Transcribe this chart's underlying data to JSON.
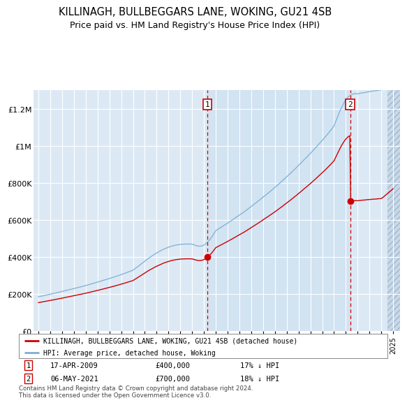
{
  "title": "KILLINAGH, BULLBEGGARS LANE, WOKING, GU21 4SB",
  "subtitle": "Price paid vs. HM Land Registry's House Price Index (HPI)",
  "ylim": [
    0,
    1300000
  ],
  "yticks": [
    0,
    200000,
    400000,
    600000,
    800000,
    1000000,
    1200000
  ],
  "ytick_labels": [
    "£0",
    "£200K",
    "£400K",
    "£600K",
    "£800K",
    "£1M",
    "£1.2M"
  ],
  "xstart_year": 1995,
  "xend_year": 2025,
  "sale1_year": 2009.3,
  "sale2_year": 2021.37,
  "sale1_price": 400000,
  "sale2_price": 700000,
  "marker1_label": "17-APR-2009",
  "marker2_label": "06-MAY-2021",
  "marker1_pct": "17% ↓ HPI",
  "marker2_pct": "18% ↓ HPI",
  "transaction_color": "#cc0000",
  "hpi_color": "#7bafd4",
  "background_color": "#dce9f5",
  "highlight_bg": "#ccdff0",
  "legend_line1": "KILLINAGH, BULLBEGGARS LANE, WOKING, GU21 4SB (detached house)",
  "legend_line2": "HPI: Average price, detached house, Woking",
  "footer": "Contains HM Land Registry data © Crown copyright and database right 2024.\nThis data is licensed under the Open Government Licence v3.0.",
  "title_fontsize": 10.5,
  "subtitle_fontsize": 9
}
